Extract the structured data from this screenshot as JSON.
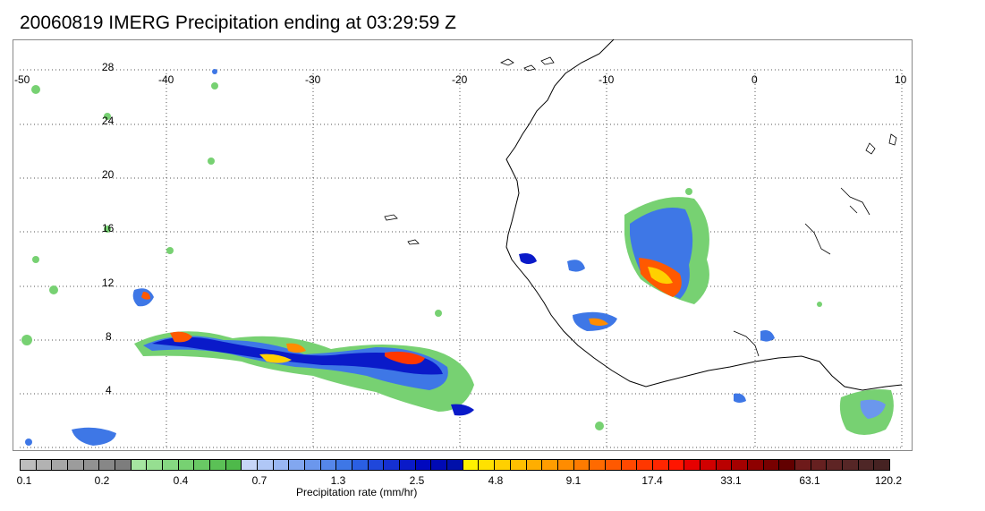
{
  "title": "20060819 IMERG Precipitation ending at 03:29:59 Z",
  "lon_labels": [
    "-50",
    "-40",
    "-30",
    "-20",
    "-10",
    "0",
    "10"
  ],
  "lat_labels": [
    "28",
    "24",
    "20",
    "16",
    "12",
    "8",
    "4"
  ],
  "colorbar": {
    "title": "Precipitation rate (mm/hr)",
    "labels": [
      "0.1",
      "0.2",
      "0.4",
      "0.7",
      "1.3",
      "2.5",
      "4.8",
      "9.1",
      "17.4",
      "33.1",
      "63.1",
      "120.2"
    ],
    "colors": [
      "#bdbdbd",
      "#b2b2b2",
      "#a7a7a7",
      "#9c9c9c",
      "#929292",
      "#878787",
      "#7d7d7d",
      "#a6e6a1",
      "#96df91",
      "#86d882",
      "#77d172",
      "#69c964",
      "#5bc156",
      "#4eb94a",
      "#c7d6f8",
      "#b0c7f6",
      "#99b7f3",
      "#82a7f0",
      "#6b97ed",
      "#5587ea",
      "#3e77e6",
      "#2a5fe3",
      "#1f47db",
      "#1530d2",
      "#0a1ac9",
      "#0008bf",
      "#000ab5",
      "#0010aa",
      "#fff200",
      "#ffe100",
      "#ffd000",
      "#ffbf00",
      "#ffae00",
      "#ff9d00",
      "#ff8c00",
      "#ff7b00",
      "#ff6a00",
      "#ff5900",
      "#ff4800",
      "#ff3700",
      "#ff2600",
      "#ff1500",
      "#e60000",
      "#d00000",
      "#ba0000",
      "#a40000",
      "#8e0000",
      "#780000",
      "#620000",
      "#6e1a1a",
      "#662020",
      "#5e2424",
      "#562626",
      "#4e2626",
      "#462222"
    ]
  },
  "colors": {
    "frame": "#888888",
    "grid": "#555555",
    "coast": "#000000"
  }
}
